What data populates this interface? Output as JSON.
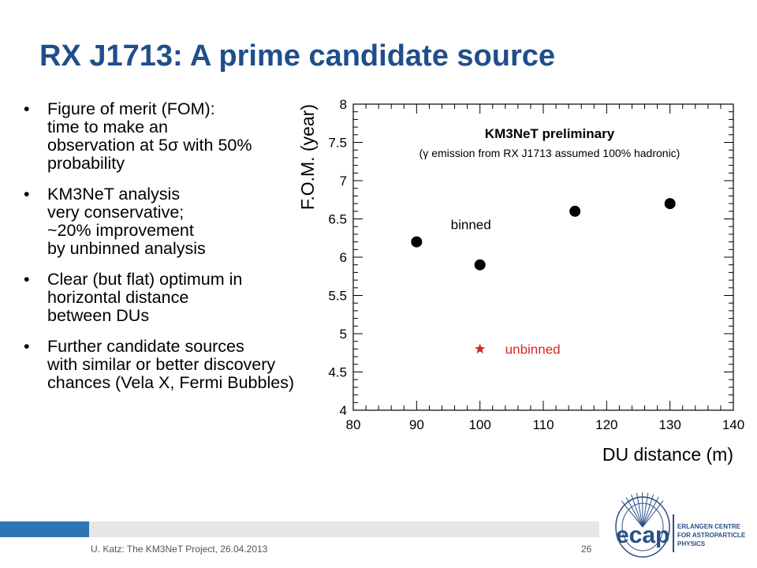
{
  "slide": {
    "title": "RX J1713: A prime candidate source",
    "bullet_char": "•",
    "bullets": [
      [
        "Figure of merit (FOM):",
        "time to make an",
        "observation at 5σ with 50%",
        "probability"
      ],
      [
        "KM3NeT analysis",
        "very conservative;",
        "~20% improvement",
        "by unbinned analysis"
      ],
      [
        "Clear (but flat) optimum in",
        "horizontal distance",
        "between DUs"
      ],
      [
        "Further candidate sources",
        "with similar or better discovery",
        "chances (Vela X, Fermi Bubbles)"
      ]
    ],
    "footer": "U. Katz: The KM3NeT Project, 26.04.2013",
    "page_number": "26",
    "colors": {
      "title": "#1f4e8c",
      "footer_accent": "#2e75b6",
      "footer_bar": "#e6e6e6",
      "unbinned": "#d62728"
    }
  },
  "logo": {
    "wordmark": "ecap",
    "lines": [
      "ERLANGEN CENTRE",
      "FOR ASTROPARTICLE",
      "PHYSICS"
    ]
  },
  "chart_data": {
    "type": "scatter",
    "title": "KM3NeT preliminary",
    "subtitle": "(γ emission from RX J1713 assumed 100% hadronic)",
    "xlabel": "DU distance (m)",
    "ylabel": "F.O.M. (year)",
    "xlim": [
      80,
      140
    ],
    "ylim": [
      4,
      8
    ],
    "x_ticks": [
      80,
      90,
      100,
      110,
      120,
      130,
      140
    ],
    "y_ticks": [
      "4",
      "4.5",
      "5",
      "5.5",
      "6",
      "6.5",
      "7",
      "7.5",
      "8"
    ],
    "series": [
      {
        "name": "binned",
        "marker": "circle",
        "color": "#000000",
        "x": [
          90,
          100,
          115,
          130
        ],
        "y": [
          6.2,
          5.9,
          6.6,
          6.7
        ]
      },
      {
        "name": "unbinned",
        "marker": "star",
        "color": "#d62728",
        "x": [
          100
        ],
        "y": [
          4.8
        ]
      }
    ],
    "grid": false
  }
}
